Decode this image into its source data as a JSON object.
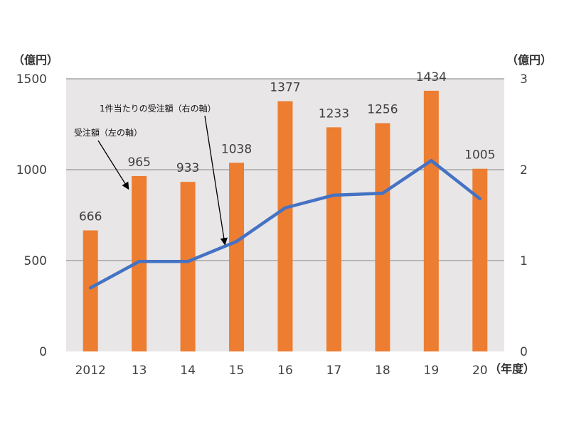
{
  "chart_data": {
    "type": "bar+line",
    "categories": [
      "2012",
      "13",
      "14",
      "15",
      "16",
      "17",
      "18",
      "19",
      "20"
    ],
    "x_axis_unit": "（年度）",
    "series": [
      {
        "name": "受注額",
        "type": "bar",
        "axis": "left",
        "color": "#ed7d31",
        "values": [
          666,
          965,
          933,
          1038,
          1377,
          1233,
          1256,
          1434,
          1005
        ],
        "data_labels": [
          "666",
          "965",
          "933",
          "1038",
          "1377",
          "1233",
          "1256",
          "1434",
          "1005"
        ]
      },
      {
        "name": "1件当たりの受注額",
        "type": "line",
        "axis": "right",
        "color": "#4472c4",
        "values": [
          0.7,
          0.99,
          0.99,
          1.21,
          1.58,
          1.72,
          1.74,
          2.1,
          1.68
        ]
      }
    ],
    "left_axis": {
      "unit": "（億円）",
      "ylim": [
        0,
        1500
      ],
      "ticks": [
        "0",
        "500",
        "1000",
        "1500"
      ]
    },
    "right_axis": {
      "unit": "（億円）",
      "ylim": [
        0,
        3
      ],
      "ticks": [
        "0",
        "1",
        "2",
        "3"
      ]
    },
    "annotations": {
      "bar": "受注額（左の軸）",
      "line": "1件当たりの受注額（右の軸）"
    },
    "grid": true,
    "legend": "none",
    "plot_background": "#e8e6e6",
    "gridline_color": "#a6a6a6"
  }
}
